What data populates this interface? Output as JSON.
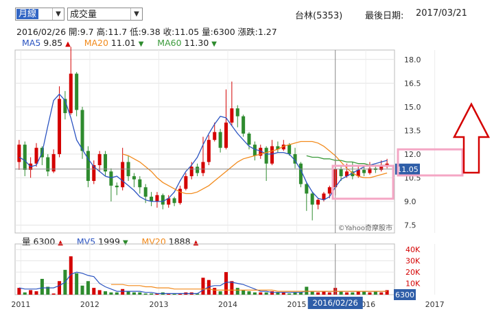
{
  "controls": {
    "period": "月線",
    "indicator": "成交量"
  },
  "stock": {
    "name": "台林(5353)",
    "last_date_label": "最後日期:",
    "last_date": "2017/03/21"
  },
  "info": {
    "date": "2016/02/26",
    "open": "開:9.7",
    "high": "高:11.7",
    "low": "低:9.38",
    "close": "收:11.05",
    "volume": "量:6300",
    "change": "漲跌:1.27"
  },
  "ma": [
    {
      "label": "MA5",
      "value": "9.85",
      "dir": "▲",
      "color": "#2a53c1",
      "dir_color": "#d40000"
    },
    {
      "label": "MA20",
      "value": "11.01",
      "dir": "▼",
      "color": "#f28a1b",
      "dir_color": "#2e8b2e"
    },
    {
      "label": "MA60",
      "value": "11.30",
      "dir": "▼",
      "color": "#3a9a3a",
      "dir_color": "#2e8b2e"
    }
  ],
  "vol_legend": [
    {
      "label": "量",
      "value": "6300",
      "dir": "▲",
      "color": "#222",
      "dir_color": "#d40000"
    },
    {
      "label": "MV5",
      "value": "1999",
      "dir": "▼",
      "color": "#2a53c1",
      "dir_color": "#2e8b2e"
    },
    {
      "label": "MV20",
      "value": "1888",
      "dir": "▲",
      "color": "#f28a1b",
      "dir_color": "#d40000"
    }
  ],
  "cursor": {
    "date_label": "2016/02/26",
    "price_label": "11.05",
    "volume_label": "6300"
  },
  "watermark": "©Yahoo奇摩股市",
  "colors": {
    "up": "#d40000",
    "down": "#2e8b2e",
    "ma5": "#2a53c1",
    "ma20": "#f28a1b",
    "ma60": "#3a9a3a",
    "annotation": "#f4a6c4",
    "arrow": "#d40000",
    "label_bg": "#2f5ea8"
  },
  "chart_data": [
    {
      "type": "candlestick",
      "title": "",
      "xlabel": "",
      "ylabel": "",
      "x_ticks": [
        "2011",
        "2012",
        "2013",
        "2014",
        "2015",
        "2016",
        "2017"
      ],
      "y_ticks": [
        7.5,
        9.0,
        10.5,
        12.0,
        13.5,
        15.0,
        16.5,
        18.0
      ],
      "ylim": [
        7.0,
        18.6
      ],
      "xlim": [
        0,
        75
      ],
      "grid": true,
      "series": [
        {
          "name": "MA5",
          "values": [
            11.8,
            11.6,
            11.2,
            11.3,
            12.1,
            13.8,
            15.4,
            15.8,
            15.4,
            14.3,
            12.9,
            12.3,
            11.7,
            11.2,
            10.9,
            10.6,
            10.5,
            10.6,
            10.3,
            10.0,
            9.7,
            9.3,
            9.1,
            9.0,
            9.0,
            9.0,
            9.2,
            9.6,
            10.3,
            10.9,
            11.3,
            11.8,
            12.6,
            13.3,
            13.9,
            14.4,
            14.3,
            13.8,
            13.3,
            12.9,
            12.5,
            12.3,
            12.2,
            12.0,
            12.0,
            12.1,
            12.1,
            12.0,
            11.6,
            11.0,
            10.2,
            9.6,
            9.2,
            9.1,
            9.3,
            9.9,
            10.4,
            10.6,
            10.8,
            11.0,
            11.2,
            11.3,
            11.4,
            11.5,
            11.6
          ]
        },
        {
          "name": "MA20",
          "x_start": 18,
          "values": [
            12.0,
            11.9,
            11.7,
            11.5,
            11.2,
            10.9,
            10.5,
            10.2,
            10.0,
            9.8,
            9.6,
            9.5,
            9.5,
            9.6,
            9.8,
            10.0,
            10.3,
            10.6,
            10.9,
            11.2,
            11.5,
            11.7,
            11.8,
            11.9,
            12.0,
            12.1,
            12.2,
            12.3,
            12.5,
            12.6,
            12.7,
            12.8,
            12.8,
            12.8,
            12.7,
            12.5,
            12.2,
            11.9,
            11.5,
            11.1,
            10.8,
            10.6,
            10.5,
            10.5,
            10.6,
            10.7,
            10.8
          ]
        },
        {
          "name": "MA60",
          "x_start": 50,
          "values": [
            11.9,
            11.8,
            11.8,
            11.7,
            11.7,
            11.6,
            11.6,
            11.5,
            11.5,
            11.4,
            11.4,
            11.3,
            11.3,
            11.3,
            11.3
          ]
        }
      ],
      "candles": [
        [
          11.5,
          12.6,
          12.9,
          11.0
        ],
        [
          12.6,
          11.0,
          12.8,
          10.6
        ],
        [
          11.0,
          11.4,
          11.8,
          10.5
        ],
        [
          11.4,
          12.4,
          12.7,
          11.2
        ],
        [
          12.4,
          11.8,
          12.5,
          11.3
        ],
        [
          11.8,
          10.9,
          12.0,
          10.6
        ],
        [
          10.9,
          12.0,
          12.3,
          10.8
        ],
        [
          12.0,
          15.5,
          16.3,
          11.8
        ],
        [
          15.5,
          14.6,
          16.0,
          14.2
        ],
        [
          14.6,
          17.1,
          18.8,
          14.5
        ],
        [
          17.1,
          14.8,
          17.2,
          14.4
        ],
        [
          14.8,
          12.2,
          15.0,
          11.7
        ],
        [
          12.2,
          10.3,
          12.5,
          9.9
        ],
        [
          10.3,
          11.3,
          11.6,
          10.1
        ],
        [
          11.3,
          12.0,
          12.2,
          10.9
        ],
        [
          12.0,
          10.9,
          12.2,
          10.6
        ],
        [
          10.9,
          10.0,
          11.1,
          9.0
        ],
        [
          10.0,
          9.9,
          10.2,
          9.4
        ],
        [
          9.9,
          11.5,
          12.4,
          9.7
        ],
        [
          11.5,
          10.6,
          11.9,
          10.3
        ],
        [
          10.6,
          10.4,
          10.8,
          9.9
        ],
        [
          10.4,
          9.9,
          10.6,
          9.5
        ],
        [
          9.9,
          9.3,
          10.1,
          8.9
        ],
        [
          9.3,
          9.0,
          9.6,
          8.7
        ],
        [
          9.0,
          9.4,
          9.6,
          8.6
        ],
        [
          9.4,
          8.8,
          9.5,
          8.5
        ],
        [
          8.8,
          9.2,
          9.4,
          8.6
        ],
        [
          9.2,
          8.9,
          9.3,
          8.7
        ],
        [
          8.9,
          9.8,
          10.0,
          8.8
        ],
        [
          9.8,
          10.6,
          10.8,
          9.7
        ],
        [
          10.6,
          11.2,
          11.5,
          10.4
        ],
        [
          11.2,
          10.8,
          11.4,
          10.6
        ],
        [
          10.8,
          11.5,
          13.1,
          10.6
        ],
        [
          11.5,
          12.9,
          13.2,
          11.3
        ],
        [
          12.9,
          13.4,
          14.0,
          12.8
        ],
        [
          13.4,
          12.4,
          13.6,
          12.1
        ],
        [
          12.4,
          14.0,
          16.1,
          12.3
        ],
        [
          14.0,
          14.9,
          16.6,
          13.8
        ],
        [
          14.9,
          14.4,
          15.1,
          13.7
        ],
        [
          14.4,
          13.3,
          14.5,
          13.1
        ],
        [
          13.3,
          12.6,
          13.4,
          12.3
        ],
        [
          12.6,
          11.9,
          12.8,
          11.6
        ],
        [
          11.9,
          12.4,
          12.6,
          11.7
        ],
        [
          12.4,
          11.4,
          12.5,
          10.3
        ],
        [
          11.4,
          12.5,
          12.9,
          11.3
        ],
        [
          12.5,
          12.3,
          12.8,
          12.1
        ],
        [
          12.3,
          12.6,
          12.9,
          12.2
        ],
        [
          12.6,
          12.0,
          12.7,
          11.9
        ],
        [
          12.0,
          11.4,
          12.4,
          11.1
        ],
        [
          11.4,
          10.1,
          11.5,
          9.9
        ],
        [
          10.1,
          9.5,
          10.2,
          8.4
        ],
        [
          9.5,
          8.8,
          9.6,
          7.8
        ],
        [
          8.8,
          9.1,
          9.2,
          8.5
        ],
        [
          9.1,
          9.5,
          9.6,
          9.0
        ],
        [
          9.5,
          9.9,
          10.0,
          9.2
        ],
        [
          9.9,
          11.05,
          11.7,
          9.38
        ],
        [
          11.05,
          10.6,
          11.3,
          10.3
        ],
        [
          10.6,
          10.9,
          11.4,
          10.5
        ],
        [
          10.9,
          10.6,
          11.5,
          10.4
        ],
        [
          10.6,
          11.0,
          11.2,
          10.5
        ],
        [
          11.0,
          10.8,
          11.3,
          10.6
        ],
        [
          10.8,
          11.1,
          11.5,
          10.7
        ],
        [
          11.1,
          11.0,
          11.2,
          10.8
        ],
        [
          11.0,
          11.3,
          11.6,
          10.9
        ],
        [
          11.3,
          11.4,
          11.7,
          11.1
        ]
      ]
    },
    {
      "type": "bar",
      "title": "",
      "y_ticks_labels": [
        "10K",
        "20K",
        "30K",
        "40K"
      ],
      "y_ticks": [
        10,
        20,
        30,
        40
      ],
      "ylim": [
        0,
        45
      ],
      "unit": "K",
      "values": [
        6,
        2,
        4,
        3,
        14,
        7,
        1,
        12,
        22,
        34,
        19,
        8,
        12,
        6,
        4,
        3,
        2,
        2,
        5,
        3,
        2,
        2,
        1,
        1,
        1,
        2,
        1,
        1,
        1,
        2,
        2,
        1,
        15,
        13,
        6,
        3,
        20,
        12,
        6,
        4,
        3,
        2,
        2,
        2,
        3,
        2,
        2,
        1,
        2,
        2,
        7,
        3,
        2,
        3,
        2,
        6,
        3,
        2,
        2,
        3,
        3,
        2,
        3,
        2,
        4
      ],
      "ma5": [
        6,
        5,
        5,
        5,
        6,
        6,
        6,
        8,
        11,
        18,
        20,
        19,
        17,
        16,
        10,
        7,
        5,
        3,
        3,
        3,
        3,
        3,
        2,
        2,
        1,
        1,
        1,
        1,
        1,
        1,
        1,
        1,
        4,
        7,
        8,
        8,
        11,
        11,
        10,
        9,
        7,
        5,
        3,
        3,
        2,
        2,
        2,
        2,
        2,
        2,
        3,
        3,
        3,
        3,
        3,
        3,
        3,
        3,
        3,
        3,
        3,
        3,
        3,
        3,
        3
      ],
      "mv20": [
        9,
        9,
        9,
        8,
        8,
        8,
        7,
        7,
        6,
        6,
        6,
        5,
        5,
        5,
        5,
        5,
        5,
        5,
        4,
        4,
        4,
        4,
        4,
        4,
        4,
        4,
        4,
        4,
        4,
        3,
        3,
        3,
        3,
        3,
        3,
        3,
        3,
        3,
        3,
        3,
        3,
        3,
        3,
        3,
        3,
        3,
        3,
        3,
        3
      ]
    }
  ],
  "annotations": {
    "highlight_box_label": "",
    "price_box_label": "12.0"
  }
}
